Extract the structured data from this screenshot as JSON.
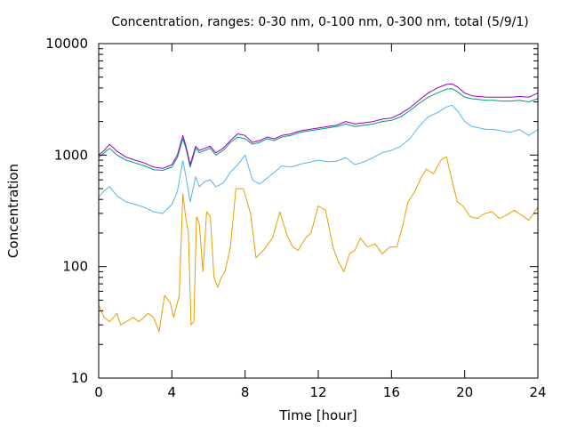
{
  "chart_data": {
    "type": "line",
    "title": "Concentration, ranges: 0-30 nm, 0-100 nm, 0-300 nm, total (5/9/1)",
    "xlabel": "Time [hour]",
    "ylabel": "Concentration",
    "xlim": [
      0,
      24
    ],
    "ylim": [
      10,
      10000
    ],
    "yscale": "log",
    "grid": false,
    "legend": "none",
    "x_ticks": [
      0,
      4,
      8,
      12,
      16,
      20,
      24
    ],
    "x_tick_labels": [
      "0",
      "4",
      "8",
      "12",
      "16",
      "20",
      "24"
    ],
    "y_ticks": [
      10,
      100,
      1000,
      10000
    ],
    "y_tick_labels": [
      "10",
      "100",
      "1000",
      "10000"
    ],
    "series": [
      {
        "color": "#e69f00",
        "x": [
          0,
          0.3,
          0.6,
          1.0,
          1.2,
          1.5,
          1.9,
          2.2,
          2.7,
          3.0,
          3.3,
          3.6,
          3.9,
          4.1,
          4.4,
          4.6,
          4.75,
          4.9,
          5.05,
          5.2,
          5.35,
          5.5,
          5.7,
          5.9,
          6.1,
          6.3,
          6.5,
          6.7,
          6.9,
          7.2,
          7.5,
          7.9,
          8.3,
          8.6,
          9.0,
          9.5,
          9.9,
          10.3,
          10.6,
          10.9,
          11.3,
          11.6,
          12.0,
          12.4,
          12.8,
          13.1,
          13.4,
          13.7,
          14.0,
          14.3,
          14.7,
          15.1,
          15.5,
          15.9,
          16.3,
          16.6,
          16.9,
          17.3,
          17.6,
          17.9,
          18.3,
          18.7,
          19.0,
          19.3,
          19.6,
          19.9,
          20.3,
          20.7,
          21.1,
          21.5,
          21.9,
          22.3,
          22.7,
          23.1,
          23.5,
          24.0
        ],
        "values": [
          45,
          35,
          32,
          38,
          30,
          32,
          35,
          32,
          38,
          35,
          26,
          55,
          48,
          35,
          55,
          450,
          280,
          200,
          30,
          32,
          280,
          240,
          90,
          310,
          280,
          80,
          65,
          80,
          90,
          150,
          500,
          500,
          300,
          120,
          140,
          180,
          310,
          190,
          150,
          140,
          180,
          200,
          350,
          320,
          150,
          110,
          90,
          130,
          140,
          180,
          150,
          160,
          130,
          150,
          150,
          230,
          380,
          480,
          620,
          750,
          680,
          900,
          970,
          600,
          380,
          350,
          280,
          270,
          300,
          310,
          270,
          290,
          320,
          290,
          260,
          340
        ]
      },
      {
        "color": "#56b4e9",
        "x": [
          0,
          0.3,
          0.6,
          1.0,
          1.5,
          2.0,
          2.5,
          3.0,
          3.5,
          4.0,
          4.3,
          4.6,
          4.8,
          5.0,
          5.3,
          5.5,
          5.8,
          6.1,
          6.4,
          6.8,
          7.2,
          7.6,
          8.0,
          8.4,
          8.8,
          9.2,
          9.6,
          10.0,
          10.5,
          11.0,
          11.5,
          12.0,
          12.5,
          13.0,
          13.5,
          14.0,
          14.5,
          15.0,
          15.5,
          16.0,
          16.5,
          17.0,
          17.5,
          18.0,
          18.5,
          19.0,
          19.3,
          19.6,
          20.0,
          20.4,
          20.8,
          21.2,
          21.6,
          22.0,
          22.5,
          23.0,
          23.5,
          24.0
        ],
        "values": [
          420,
          480,
          520,
          430,
          380,
          360,
          340,
          310,
          300,
          360,
          470,
          890,
          600,
          380,
          640,
          520,
          580,
          600,
          520,
          560,
          700,
          820,
          1000,
          600,
          550,
          620,
          700,
          800,
          780,
          830,
          860,
          900,
          870,
          880,
          950,
          820,
          870,
          950,
          1050,
          1100,
          1200,
          1400,
          1800,
          2200,
          2400,
          2700,
          2800,
          2500,
          2000,
          1800,
          1750,
          1700,
          1700,
          1650,
          1600,
          1700,
          1500,
          1700
        ]
      },
      {
        "color": "#009e73",
        "x": [
          0,
          0.3,
          0.6,
          1.0,
          1.5,
          2.0,
          2.5,
          3.0,
          3.5,
          4.0,
          4.3,
          4.6,
          4.8,
          5.0,
          5.3,
          5.5,
          5.8,
          6.1,
          6.4,
          6.8,
          7.2,
          7.6,
          8.0,
          8.4,
          8.8,
          9.2,
          9.6,
          10.0,
          10.5,
          11.0,
          11.5,
          12.0,
          12.5,
          13.0,
          13.5,
          14.0,
          14.5,
          15.0,
          15.5,
          16.0,
          16.5,
          17.0,
          17.5,
          18.0,
          18.5,
          19.0,
          19.3,
          19.6,
          20.0,
          20.4,
          20.8,
          21.2,
          21.6,
          22.0,
          22.5,
          23.0,
          23.5,
          24.0
        ],
        "values": [
          950,
          1050,
          1150,
          1000,
          900,
          850,
          800,
          740,
          730,
          780,
          950,
          1400,
          1100,
          780,
          1150,
          1050,
          1100,
          1150,
          1000,
          1100,
          1300,
          1450,
          1400,
          1250,
          1300,
          1400,
          1350,
          1450,
          1500,
          1600,
          1650,
          1700,
          1750,
          1800,
          1900,
          1800,
          1850,
          1900,
          2000,
          2050,
          2200,
          2500,
          2900,
          3300,
          3600,
          3900,
          3950,
          3700,
          3300,
          3200,
          3150,
          3100,
          3100,
          3050,
          3050,
          3100,
          3000,
          3200
        ]
      },
      {
        "color": "#9400d3",
        "x": [
          0,
          0.3,
          0.6,
          1.0,
          1.5,
          2.0,
          2.5,
          3.0,
          3.5,
          4.0,
          4.3,
          4.6,
          4.8,
          5.0,
          5.3,
          5.5,
          5.8,
          6.1,
          6.4,
          6.8,
          7.2,
          7.6,
          8.0,
          8.4,
          8.8,
          9.2,
          9.6,
          10.0,
          10.5,
          11.0,
          11.5,
          12.0,
          12.5,
          13.0,
          13.5,
          14.0,
          14.5,
          15.0,
          15.5,
          16.0,
          16.5,
          17.0,
          17.5,
          18.0,
          18.5,
          19.0,
          19.3,
          19.6,
          20.0,
          20.4,
          20.8,
          21.2,
          21.6,
          22.0,
          22.5,
          23.0,
          23.5,
          24.0
        ],
        "values": [
          1000,
          1100,
          1250,
          1080,
          960,
          900,
          850,
          780,
          760,
          820,
          1000,
          1500,
          1150,
          820,
          1200,
          1100,
          1150,
          1200,
          1050,
          1150,
          1350,
          1550,
          1500,
          1300,
          1350,
          1450,
          1400,
          1500,
          1550,
          1650,
          1700,
          1750,
          1800,
          1850,
          2000,
          1900,
          1950,
          2000,
          2100,
          2150,
          2350,
          2650,
          3100,
          3600,
          4000,
          4300,
          4350,
          4100,
          3600,
          3400,
          3350,
          3300,
          3300,
          3300,
          3300,
          3350,
          3300,
          3600
        ]
      }
    ]
  }
}
